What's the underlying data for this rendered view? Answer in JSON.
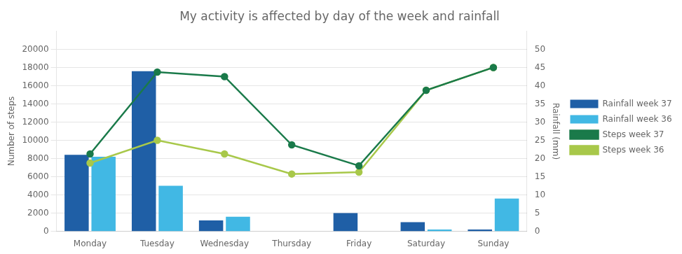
{
  "chart_data": {
    "type": "bar",
    "title": "My activity is affected by day of the week and rainfall",
    "categories": [
      "Monday",
      "Tuesday",
      "Wednesday",
      "Thursday",
      "Friday",
      "Saturday",
      "Sunday"
    ],
    "series": [
      {
        "name": "Rainfall week 37",
        "type": "bar",
        "axis": "y2",
        "color": "#1f5fa6",
        "values": [
          21,
          44,
          3,
          0,
          5,
          2.5,
          0.5
        ]
      },
      {
        "name": "Rainfall week 36",
        "type": "bar",
        "axis": "y2",
        "color": "#41b8e4",
        "values": [
          20.5,
          12.5,
          4,
          0,
          0,
          0.5,
          9
        ]
      },
      {
        "name": "Steps week 37",
        "type": "line",
        "color": "#1a7a4a",
        "marker": "circle",
        "line_style": "solid",
        "values": [
          8500,
          17500,
          17000,
          9500,
          7200,
          15500,
          18000
        ]
      },
      {
        "name": "Steps week 36",
        "type": "line",
        "color": "#a8c84a",
        "marker": "circle",
        "line_style": "solid",
        "values": [
          7500,
          10000,
          8500,
          6300,
          6500,
          15500,
          18000
        ]
      }
    ],
    "ylabel": "Number of steps",
    "y2label": "Rainfall (mm)",
    "ylim": [
      0,
      22000
    ],
    "yticks": [
      0,
      2000,
      4000,
      6000,
      8000,
      10000,
      12000,
      14000,
      16000,
      18000,
      20000
    ],
    "y2lim": [
      0,
      55
    ],
    "y2ticks": [
      0,
      5,
      10,
      15,
      20,
      25,
      30,
      35,
      40,
      45,
      50
    ],
    "grid": true,
    "legend": "right"
  }
}
